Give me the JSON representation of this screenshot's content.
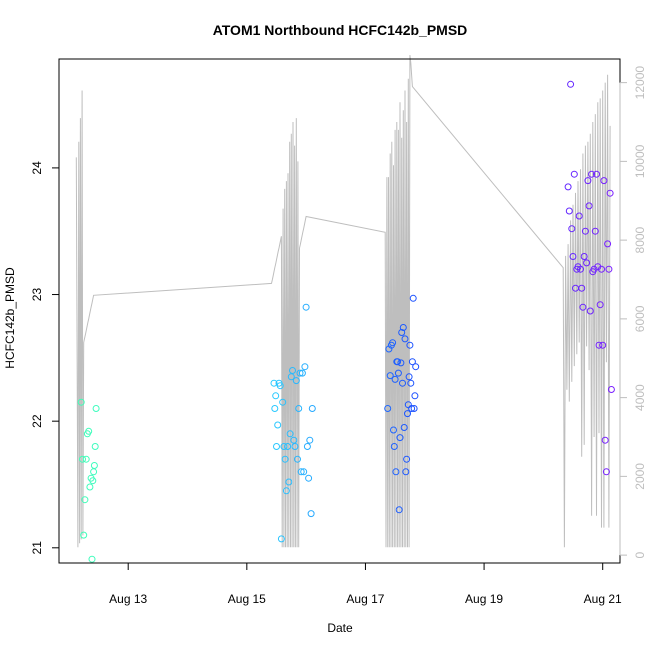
{
  "chart_data": {
    "type": "scatter",
    "title": "ATOM1 Northbound HCFC142b_PMSD",
    "xlabel": "Date",
    "ylabel": "HCFC142b_PMSD",
    "x_axis": {
      "type": "date",
      "range": [
        "2016-08-11 20:00",
        "2016-08-21 07:00"
      ],
      "ticks": [
        "Aug 13",
        "Aug 15",
        "Aug 17",
        "Aug 19",
        "Aug 21"
      ],
      "tick_dates": [
        "2016-08-13",
        "2016-08-15",
        "2016-08-17",
        "2016-08-19",
        "2016-08-21"
      ]
    },
    "y_axis_left": {
      "range": [
        20.88,
        24.86
      ],
      "ticks": [
        21,
        22,
        23,
        24
      ]
    },
    "y_axis_right": {
      "range": [
        -200,
        12600
      ],
      "ticks": [
        0,
        2000,
        4000,
        6000,
        8000,
        10000,
        12000
      ],
      "color": "#bebebe"
    },
    "grid": false,
    "series": [
      {
        "marker": "open-circle",
        "color_by_time": true,
        "colors": [
          "#3fffb8",
          "#2cd8ff",
          "#1a3fff",
          "#7a1fff"
        ],
        "points": [
          [
            "2016-08-12 05:00",
            22.15
          ],
          [
            "2016-08-12 05:30",
            21.7
          ],
          [
            "2016-08-12 06:00",
            21.1
          ],
          [
            "2016-08-12 06:30",
            21.38
          ],
          [
            "2016-08-12 07:00",
            21.7
          ],
          [
            "2016-08-12 07:30",
            21.9
          ],
          [
            "2016-08-12 08:00",
            21.92
          ],
          [
            "2016-08-12 08:30",
            21.48
          ],
          [
            "2016-08-12 09:00",
            21.55
          ],
          [
            "2016-08-12 09:20",
            20.91
          ],
          [
            "2016-08-12 09:40",
            21.53
          ],
          [
            "2016-08-12 10:00",
            21.6
          ],
          [
            "2016-08-12 10:20",
            21.65
          ],
          [
            "2016-08-12 10:40",
            21.8
          ],
          [
            "2016-08-12 11:00",
            22.1
          ],
          [
            "2016-08-15 11:00",
            22.3
          ],
          [
            "2016-08-15 11:20",
            22.1
          ],
          [
            "2016-08-15 11:40",
            22.2
          ],
          [
            "2016-08-15 12:00",
            21.8
          ],
          [
            "2016-08-15 12:30",
            21.97
          ],
          [
            "2016-08-15 13:00",
            22.3
          ],
          [
            "2016-08-15 13:30",
            22.28
          ],
          [
            "2016-08-15 14:00",
            21.07
          ],
          [
            "2016-08-15 14:30",
            22.15
          ],
          [
            "2016-08-15 15:00",
            21.8
          ],
          [
            "2016-08-15 15:30",
            21.7
          ],
          [
            "2016-08-15 16:00",
            21.45
          ],
          [
            "2016-08-15 16:30",
            21.8
          ],
          [
            "2016-08-15 17:00",
            21.52
          ],
          [
            "2016-08-15 17:30",
            21.9
          ],
          [
            "2016-08-15 18:00",
            22.35
          ],
          [
            "2016-08-15 18:30",
            22.4
          ],
          [
            "2016-08-15 19:00",
            21.85
          ],
          [
            "2016-08-15 19:30",
            21.8
          ],
          [
            "2016-08-15 20:00",
            22.32
          ],
          [
            "2016-08-15 20:30",
            21.7
          ],
          [
            "2016-08-15 21:00",
            22.1
          ],
          [
            "2016-08-15 21:30",
            22.38
          ],
          [
            "2016-08-15 22:00",
            21.6
          ],
          [
            "2016-08-15 22:30",
            22.38
          ],
          [
            "2016-08-15 23:00",
            21.6
          ],
          [
            "2016-08-15 23:30",
            22.43
          ],
          [
            "2016-08-16 00:00",
            22.9
          ],
          [
            "2016-08-16 00:30",
            21.8
          ],
          [
            "2016-08-16 01:00",
            21.55
          ],
          [
            "2016-08-16 01:30",
            21.85
          ],
          [
            "2016-08-16 02:00",
            21.27
          ],
          [
            "2016-08-16 02:30",
            22.1
          ],
          [
            "2016-08-17 09:00",
            22.1
          ],
          [
            "2016-08-17 09:30",
            22.57
          ],
          [
            "2016-08-17 10:00",
            22.36
          ],
          [
            "2016-08-17 10:30",
            22.6
          ],
          [
            "2016-08-17 11:00",
            22.62
          ],
          [
            "2016-08-17 11:20",
            21.93
          ],
          [
            "2016-08-17 11:40",
            21.8
          ],
          [
            "2016-08-17 12:00",
            22.33
          ],
          [
            "2016-08-17 12:20",
            21.6
          ],
          [
            "2016-08-17 12:40",
            22.47
          ],
          [
            "2016-08-17 13:00",
            22.47
          ],
          [
            "2016-08-17 13:20",
            22.38
          ],
          [
            "2016-08-17 13:40",
            21.3
          ],
          [
            "2016-08-17 14:00",
            21.87
          ],
          [
            "2016-08-17 14:20",
            22.46
          ],
          [
            "2016-08-17 14:40",
            22.7
          ],
          [
            "2016-08-17 15:00",
            22.3
          ],
          [
            "2016-08-17 15:20",
            22.74
          ],
          [
            "2016-08-17 15:40",
            21.95
          ],
          [
            "2016-08-17 16:00",
            22.65
          ],
          [
            "2016-08-17 16:20",
            21.6
          ],
          [
            "2016-08-17 16:40",
            21.7
          ],
          [
            "2016-08-17 17:00",
            22.06
          ],
          [
            "2016-08-17 17:20",
            22.13
          ],
          [
            "2016-08-17 17:40",
            22.35
          ],
          [
            "2016-08-17 18:00",
            22.6
          ],
          [
            "2016-08-17 18:20",
            22.3
          ],
          [
            "2016-08-17 18:40",
            22.1
          ],
          [
            "2016-08-17 19:00",
            22.47
          ],
          [
            "2016-08-17 19:20",
            22.97
          ],
          [
            "2016-08-17 19:40",
            22.1
          ],
          [
            "2016-08-17 20:00",
            22.2
          ],
          [
            "2016-08-17 20:20",
            22.43
          ],
          [
            "2016-08-20 10:00",
            23.85
          ],
          [
            "2016-08-20 10:30",
            23.66
          ],
          [
            "2016-08-20 11:00",
            24.66
          ],
          [
            "2016-08-20 11:30",
            23.52
          ],
          [
            "2016-08-20 12:00",
            23.3
          ],
          [
            "2016-08-20 12:30",
            23.95
          ],
          [
            "2016-08-20 13:00",
            23.05
          ],
          [
            "2016-08-20 13:30",
            23.2
          ],
          [
            "2016-08-20 14:00",
            23.22
          ],
          [
            "2016-08-20 14:30",
            23.62
          ],
          [
            "2016-08-20 15:00",
            23.2
          ],
          [
            "2016-08-20 15:30",
            23.05
          ],
          [
            "2016-08-20 16:00",
            22.9
          ],
          [
            "2016-08-20 16:30",
            23.3
          ],
          [
            "2016-08-20 17:00",
            23.5
          ],
          [
            "2016-08-20 17:30",
            23.25
          ],
          [
            "2016-08-20 18:00",
            23.9
          ],
          [
            "2016-08-20 18:30",
            23.7
          ],
          [
            "2016-08-20 19:00",
            22.87
          ],
          [
            "2016-08-20 19:30",
            23.95
          ],
          [
            "2016-08-20 20:00",
            23.18
          ],
          [
            "2016-08-20 20:30",
            23.2
          ],
          [
            "2016-08-20 21:00",
            23.5
          ],
          [
            "2016-08-20 21:30",
            23.95
          ],
          [
            "2016-08-20 22:00",
            23.22
          ],
          [
            "2016-08-20 22:30",
            22.6
          ],
          [
            "2016-08-20 23:00",
            22.92
          ],
          [
            "2016-08-20 23:30",
            23.2
          ],
          [
            "2016-08-21 00:00",
            22.6
          ],
          [
            "2016-08-21 00:30",
            23.9
          ],
          [
            "2016-08-21 01:00",
            21.85
          ],
          [
            "2016-08-21 01:30",
            21.6
          ],
          [
            "2016-08-21 02:00",
            23.4
          ],
          [
            "2016-08-21 02:30",
            23.2
          ],
          [
            "2016-08-21 03:00",
            23.8
          ],
          [
            "2016-08-21 03:30",
            22.25
          ]
        ]
      },
      {
        "axis": "right",
        "type": "line",
        "color": "#bebebe",
        "x": [
          "2016-08-12 03:00",
          "2016-08-12 03:40",
          "2016-08-12 04:00",
          "2016-08-12 04:20",
          "2016-08-12 04:40",
          "2016-08-12 05:00",
          "2016-08-12 05:20",
          "2016-08-12 05:40",
          "2016-08-12 06:00",
          "2016-08-12 06:20",
          "2016-08-12 06:40",
          "2016-08-12 07:00",
          "2016-08-12 07:20",
          "2016-08-12 07:40",
          "2016-08-12 08:00",
          "2016-08-12 08:20",
          "2016-08-12 08:40",
          "2016-08-12 09:00",
          "2016-08-12 09:20",
          "2016-08-12 09:40",
          "2016-08-12 10:00",
          "2016-08-15 10:00",
          "2016-08-15 10:20",
          "2016-08-15 10:40",
          "2016-08-15 11:00",
          "2016-08-15 11:20",
          "2016-08-15 11:40",
          "2016-08-15 12:00",
          "2016-08-15 12:20",
          "2016-08-15 12:40",
          "2016-08-15 13:00",
          "2016-08-15 13:20",
          "2016-08-15 13:40",
          "2016-08-15 14:00",
          "2016-08-15 14:20",
          "2016-08-15 14:40",
          "2016-08-15 15:00",
          "2016-08-15 15:20",
          "2016-08-15 15:40",
          "2016-08-15 16:00",
          "2016-08-15 16:20",
          "2016-08-15 16:40",
          "2016-08-15 17:00",
          "2016-08-15 17:20",
          "2016-08-15 17:40",
          "2016-08-15 18:00",
          "2016-08-15 18:20",
          "2016-08-15 18:40",
          "2016-08-15 19:00",
          "2016-08-15 19:20",
          "2016-08-15 19:40",
          "2016-08-15 20:00",
          "2016-08-15 20:20",
          "2016-08-15 20:40",
          "2016-08-15 21:00",
          "2016-08-15 21:20",
          "2016-08-15 21:40",
          "2016-08-15 22:00",
          "2016-08-15 22:20",
          "2016-08-15 22:40",
          "2016-08-15 23:00",
          "2016-08-15 23:20",
          "2016-08-15 23:40",
          "2016-08-16 00:00",
          "2016-08-17 08:00",
          "2016-08-17 08:20",
          "2016-08-17 08:40",
          "2016-08-17 09:00",
          "2016-08-17 09:20",
          "2016-08-17 09:40",
          "2016-08-17 10:00",
          "2016-08-17 10:20",
          "2016-08-17 10:40",
          "2016-08-17 11:00",
          "2016-08-17 11:20",
          "2016-08-17 11:40",
          "2016-08-17 12:00",
          "2016-08-17 12:20",
          "2016-08-17 12:40",
          "2016-08-17 13:00",
          "2016-08-17 13:20",
          "2016-08-17 13:40",
          "2016-08-17 14:00",
          "2016-08-17 14:20",
          "2016-08-17 14:40",
          "2016-08-17 15:00",
          "2016-08-17 15:20",
          "2016-08-17 15:40",
          "2016-08-17 16:00",
          "2016-08-17 16:20",
          "2016-08-17 16:40",
          "2016-08-17 17:00",
          "2016-08-17 17:20",
          "2016-08-17 17:40",
          "2016-08-17 18:00",
          "2016-08-17 18:20",
          "2016-08-17 18:40",
          "2016-08-17 19:00",
          "2016-08-20 08:00",
          "2016-08-20 08:30",
          "2016-08-20 09:00",
          "2016-08-20 09:30",
          "2016-08-20 10:00",
          "2016-08-20 10:30",
          "2016-08-20 11:00",
          "2016-08-20 11:30",
          "2016-08-20 12:00",
          "2016-08-20 12:30",
          "2016-08-20 13:00",
          "2016-08-20 13:30",
          "2016-08-20 14:00",
          "2016-08-20 14:30",
          "2016-08-20 15:00",
          "2016-08-20 15:30",
          "2016-08-20 16:00",
          "2016-08-20 16:30",
          "2016-08-20 17:00",
          "2016-08-20 17:30",
          "2016-08-20 18:00",
          "2016-08-20 18:30",
          "2016-08-20 19:00",
          "2016-08-20 19:30",
          "2016-08-20 20:00",
          "2016-08-20 20:30",
          "2016-08-20 21:00",
          "2016-08-20 21:30",
          "2016-08-20 22:00",
          "2016-08-20 22:30",
          "2016-08-20 23:00",
          "2016-08-20 23:30",
          "2016-08-21 00:00",
          "2016-08-21 00:30",
          "2016-08-21 01:00",
          "2016-08-21 01:30",
          "2016-08-21 02:00",
          "2016-08-21 02:30",
          "2016-08-21 03:00"
        ],
        "values": [
          10100,
          200,
          10500,
          300,
          11100,
          400,
          11800,
          500,
          5400,
          5500,
          5600,
          5700,
          5800,
          5900,
          6000,
          6100,
          6200,
          6300,
          6400,
          6500,
          6600,
          6900,
          7000,
          7100,
          7200,
          7300,
          7400,
          7500,
          7600,
          7700,
          7800,
          7900,
          8000,
          8100,
          200,
          8800,
          200,
          9300,
          200,
          9500,
          200,
          9700,
          200,
          10500,
          200,
          10700,
          200,
          11000,
          200,
          10400,
          200,
          11100,
          200,
          10000,
          200,
          7800,
          7900,
          8000,
          8100,
          8200,
          8300,
          8400,
          8500,
          8600,
          8200,
          200,
          9600,
          200,
          9600,
          200,
          10200,
          200,
          10500,
          200,
          9900,
          200,
          10800,
          200,
          11000,
          200,
          10800,
          200,
          11500,
          200,
          10600,
          200,
          11300,
          200,
          11800,
          200,
          11000,
          200,
          12100,
          200,
          12700,
          12500,
          12200,
          11900,
          7300,
          200,
          7600,
          4200,
          7900,
          3900,
          8500,
          4400,
          8900,
          4800,
          9200,
          5100,
          9500,
          5400,
          9800,
          2500,
          10200,
          2800,
          10400,
          5300,
          10500,
          4700,
          10700,
          1000,
          11000,
          3000,
          11200,
          1000,
          11500,
          3100,
          11600,
          700,
          11800,
          700,
          12000,
          4900,
          12200,
          700,
          10900
        ]
      }
    ]
  }
}
